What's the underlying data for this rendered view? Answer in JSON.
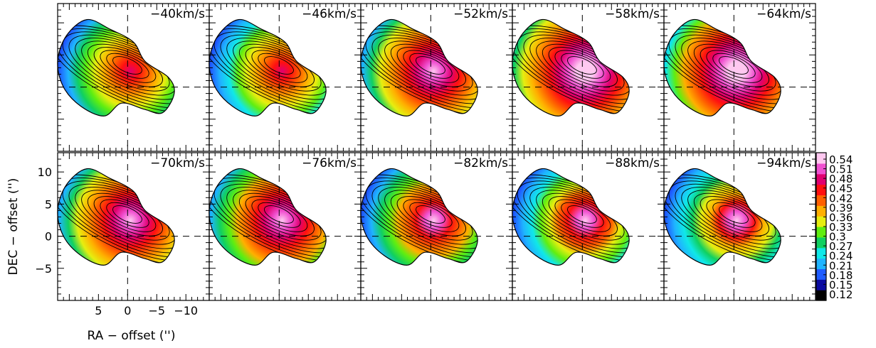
{
  "chart_data": {
    "type": "heatmap",
    "layout": "channel-map grid, 2 rows x 5 columns",
    "xlabel": "RA − offset ('')",
    "ylabel": "DEC − offset ('')",
    "xlim": [
      12,
      -14
    ],
    "ylim": [
      -10,
      13
    ],
    "x_ticks": [
      {
        "value": 5,
        "label": "5"
      },
      {
        "value": 0,
        "label": "0"
      },
      {
        "value": -5,
        "label": "−5"
      },
      {
        "value": -10,
        "label": "−10"
      }
    ],
    "y_ticks": [
      {
        "value": 10,
        "label": "10"
      },
      {
        "value": 5,
        "label": "5"
      },
      {
        "value": 0,
        "label": "0"
      },
      {
        "value": -5,
        "label": "−5"
      }
    ],
    "reference_lines": {
      "x": 0,
      "y": 0,
      "style": "dashed"
    },
    "panels": [
      {
        "label": "−40km/s",
        "velocity": -40
      },
      {
        "label": "−46km/s",
        "velocity": -46
      },
      {
        "label": "−52km/s",
        "velocity": -52
      },
      {
        "label": "−58km/s",
        "velocity": -58
      },
      {
        "label": "−64km/s",
        "velocity": -64
      },
      {
        "label": "−70km/s",
        "velocity": -70
      },
      {
        "label": "−76km/s",
        "velocity": -76
      },
      {
        "label": "−82km/s",
        "velocity": -82
      },
      {
        "label": "−88km/s",
        "velocity": -88
      },
      {
        "label": "−94km/s",
        "velocity": -94
      }
    ],
    "colorbar": {
      "min": 0.1,
      "max": 0.56,
      "tick_values": [
        0.12,
        0.15,
        0.18,
        0.21,
        0.24,
        0.27,
        0.3,
        0.33,
        0.36,
        0.39,
        0.42,
        0.45,
        0.48,
        0.51,
        0.54
      ],
      "tick_labels": [
        "0.12",
        "0.15",
        "0.18",
        "0.21",
        "0.24",
        "0.27",
        "0.3",
        "0.33",
        "0.36",
        "0.39",
        "0.42",
        "0.45",
        "0.48",
        "0.51",
        "0.54"
      ],
      "colors": [
        "#000000",
        "#0a0aa0",
        "#1f5cff",
        "#1fb4ff",
        "#10e8e8",
        "#10d060",
        "#60ee10",
        "#e6ee10",
        "#ffb000",
        "#ff6000",
        "#ff1010",
        "#e00070",
        "#f050d0",
        "#ffc8f0"
      ]
    },
    "emission_shape": [
      [
        10.5,
        8
      ],
      [
        7,
        10.5
      ],
      [
        3,
        9
      ],
      [
        -1,
        7
      ],
      [
        -3,
        4
      ],
      [
        -7,
        1.5
      ],
      [
        -8,
        -1
      ],
      [
        -6,
        -4
      ],
      [
        -3,
        -3.5
      ],
      [
        1,
        -2.5
      ],
      [
        4,
        -4.5
      ],
      [
        8,
        -3
      ],
      [
        11,
        0
      ],
      [
        12,
        4
      ]
    ],
    "intensity_peak": {
      "x": -0.5,
      "y": 2.5
    },
    "contour_levels": 11
  }
}
